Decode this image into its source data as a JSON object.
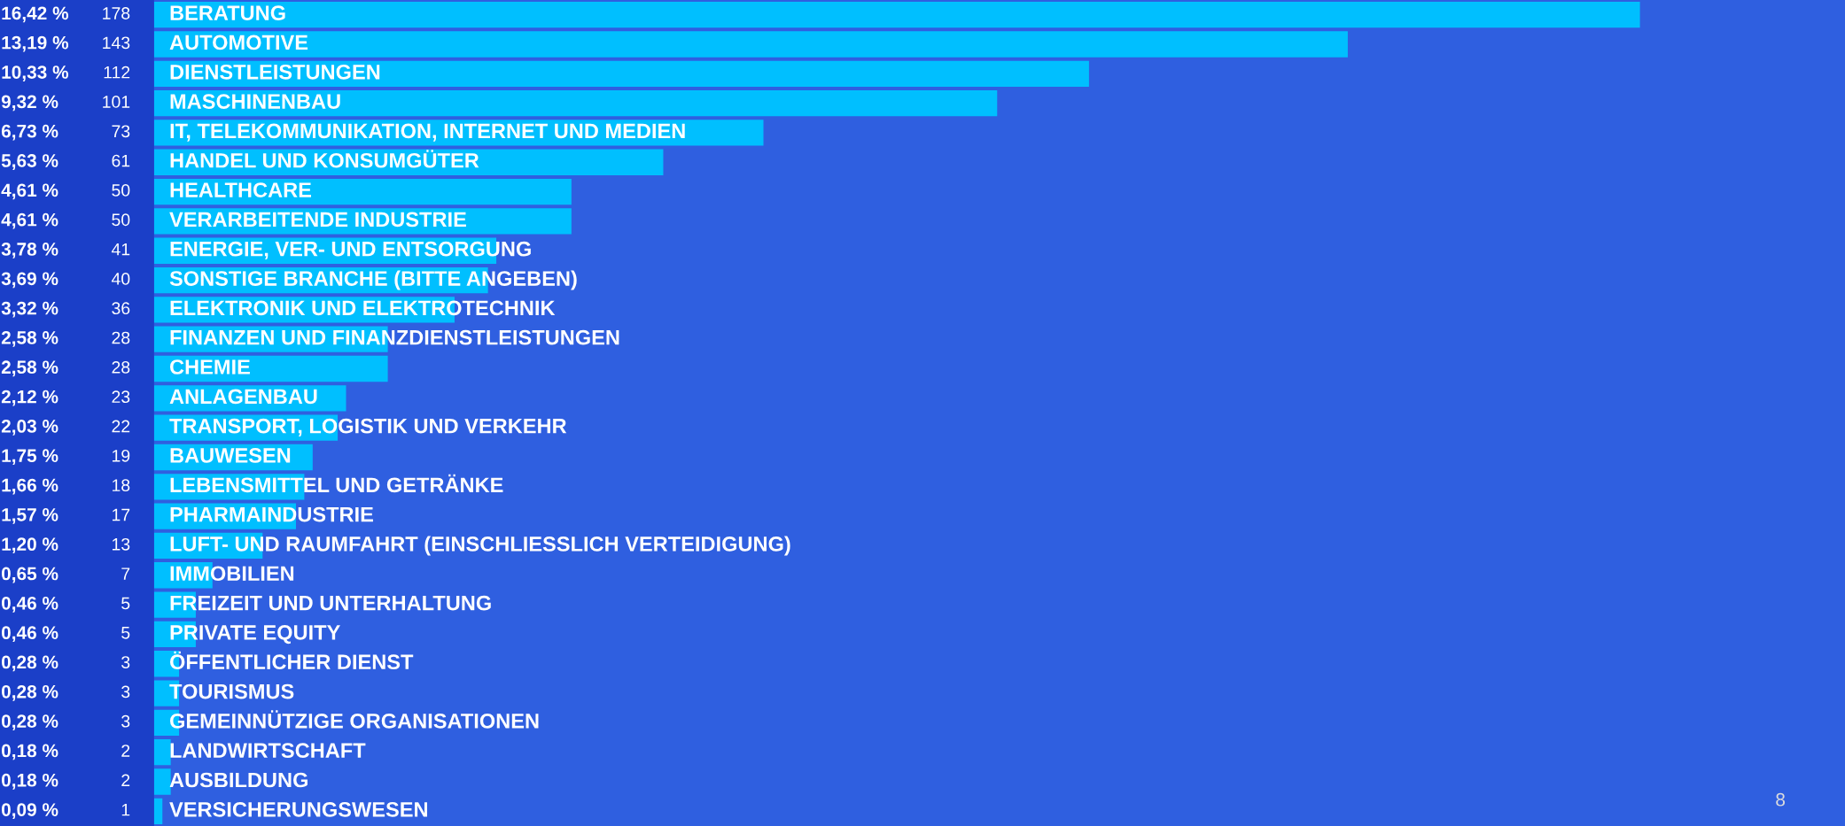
{
  "chart_data": {
    "type": "bar",
    "orientation": "horizontal",
    "color": "#00bfff",
    "data_labels": true,
    "categories": [
      "BERATUNG",
      "AUTOMOTIVE",
      "DIENSTLEISTUNGEN",
      "MASCHINENBAU",
      "IT, TELEKOMMUNIKATION, INTERNET UND MEDIEN",
      "HANDEL UND KONSUMGÜTER",
      "HEALTHCARE",
      "VERARBEITENDE INDUSTRIE",
      "ENERGIE, VER- UND ENTSORGUNG",
      "SONSTIGE BRANCHE (BITTE ANGEBEN)",
      "ELEKTRONIK UND ELEKTROTECHNIK",
      "FINANZEN UND FINANZDIENSTLEISTUNGEN",
      "CHEMIE",
      "ANLAGENBAU",
      "TRANSPORT, LOGISTIK UND VERKEHR",
      "BAUWESEN",
      "LEBENSMITTEL UND GETRÄNKE",
      "PHARMAINDUSTRIE",
      "LUFT- UND RAUMFAHRT (EINSCHLIESSLICH VERTEIDIGUNG)",
      "IMMOBILIEN",
      "FREIZEIT UND UNTERHALTUNG",
      "PRIVATE EQUITY",
      "ÖFFENTLICHER DIENST",
      "TOURISMUS",
      "GEMEINNÜTZIGE ORGANISATIONEN",
      "LANDWIRTSCHAFT",
      "AUSBILDUNG",
      "VERSICHERUNGSWESEN"
    ],
    "values": [
      178,
      143,
      112,
      101,
      73,
      61,
      50,
      50,
      41,
      40,
      36,
      28,
      28,
      23,
      22,
      19,
      18,
      17,
      13,
      7,
      5,
      5,
      3,
      3,
      3,
      2,
      2,
      1
    ],
    "annotations": [
      "16,42 %",
      "13,19 %",
      "10,33 %",
      "9,32 %",
      "6,73 %",
      "5,63 %",
      "4,61 %",
      "4,61 %",
      "3,78 %",
      "3,69 %",
      "3,32 %",
      "2,58 %",
      "2,58 %",
      "2,12 %",
      "2,03 %",
      "1,75 %",
      "1,66 %",
      "1,57 %",
      "1,20 %",
      "0,65 %",
      "0,46 %",
      "0,46 %",
      "0,28 %",
      "0,28 %",
      "0,28 %",
      "0,18 %",
      "0,18 %",
      "0,09 %",
      "8"
    ]
  }
}
